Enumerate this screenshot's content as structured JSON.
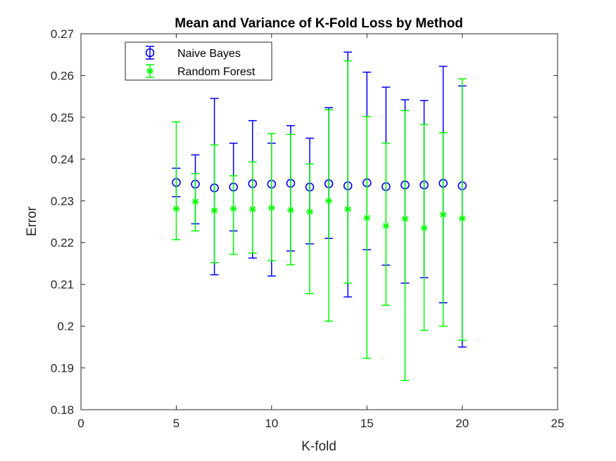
{
  "chart_data": {
    "type": "errorbar",
    "title": "Mean and Variance of K-Fold Loss by Method",
    "xlabel": "K-fold",
    "ylabel": "Error",
    "xlim": [
      0,
      25
    ],
    "ylim": [
      0.18,
      0.27
    ],
    "xticks": [
      "0",
      "5",
      "10",
      "15",
      "20",
      "25"
    ],
    "yticks": [
      "0.18",
      "0.19",
      "0.2",
      "0.21",
      "0.22",
      "0.23",
      "0.24",
      "0.25",
      "0.26",
      "0.27"
    ],
    "grid": false,
    "legend_position": "top-left",
    "x": [
      5,
      6,
      7,
      8,
      9,
      10,
      11,
      12,
      13,
      14,
      15,
      16,
      17,
      18,
      19,
      20
    ],
    "series": [
      {
        "name": "Naive Bayes",
        "marker": "circle",
        "color": "#0000ff",
        "mean": [
          0.2344,
          0.234,
          0.2331,
          0.2333,
          0.2341,
          0.234,
          0.2342,
          0.2333,
          0.2341,
          0.2336,
          0.2343,
          0.2334,
          0.2338,
          0.2338,
          0.2342,
          0.2336
        ],
        "lower": [
          0.231,
          0.2245,
          0.2123,
          0.2228,
          0.2163,
          0.212,
          0.218,
          0.2197,
          0.221,
          0.207,
          0.2183,
          0.2146,
          0.2103,
          0.2116,
          0.2056,
          0.195
        ],
        "upper": [
          0.2378,
          0.241,
          0.2545,
          0.2438,
          0.2492,
          0.2438,
          0.248,
          0.245,
          0.2523,
          0.2656,
          0.2608,
          0.2572,
          0.2542,
          0.254,
          0.2622,
          0.2575
        ]
      },
      {
        "name": "Random Forest",
        "marker": "asterisk",
        "color": "#00ff00",
        "mean": [
          0.2281,
          0.2298,
          0.2277,
          0.2281,
          0.228,
          0.2283,
          0.2278,
          0.2274,
          0.23,
          0.228,
          0.2259,
          0.224,
          0.2257,
          0.2235,
          0.2267,
          0.2258
        ],
        "lower": [
          0.2207,
          0.2228,
          0.2152,
          0.2172,
          0.2175,
          0.2157,
          0.2147,
          0.2078,
          0.2012,
          0.2103,
          0.1923,
          0.205,
          0.187,
          0.199,
          0.2,
          0.1966
        ],
        "upper": [
          0.2489,
          0.2365,
          0.2434,
          0.236,
          0.2393,
          0.2461,
          0.2459,
          0.2388,
          0.2518,
          0.2635,
          0.2502,
          0.2438,
          0.2516,
          0.2483,
          0.2463,
          0.2592
        ]
      }
    ]
  }
}
